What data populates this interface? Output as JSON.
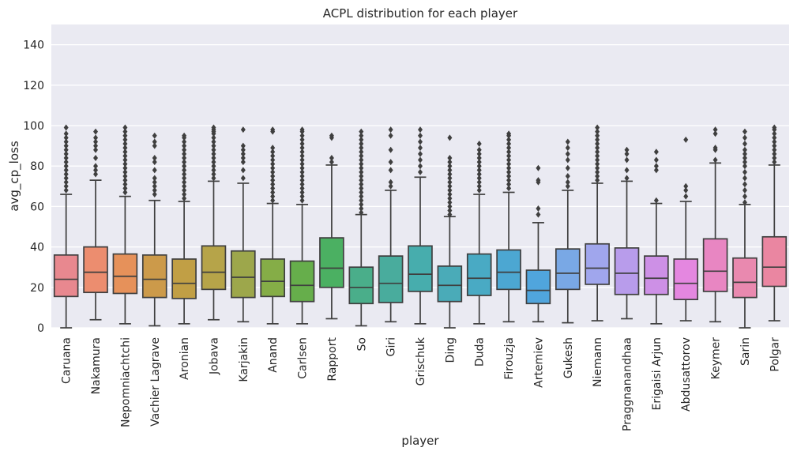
{
  "chart_data": {
    "type": "box",
    "title": "ACPL distribution for each player",
    "xlabel": "player",
    "ylabel": "avg_cp_loss",
    "ylim": [
      0,
      150
    ],
    "yticks": [
      0,
      20,
      40,
      60,
      80,
      100,
      120,
      140
    ],
    "grid": true,
    "categories": [
      "Caruana",
      "Nakamura",
      "Nepomniachtchi",
      "Vachier Lagrave",
      "Aronian",
      "Jobava",
      "Karjakin",
      "Anand",
      "Carlsen",
      "Rapport",
      "So",
      "Giri",
      "Grischuk",
      "Ding",
      "Duda",
      "Firouzja",
      "Artemiev",
      "Gukesh",
      "Niemann",
      "Praggnanandhaa",
      "Erigaisi Arjun",
      "Abdusattorov",
      "Keymer",
      "Sarin",
      "Polgar"
    ],
    "colors": [
      "#e8888f",
      "#ec8d6f",
      "#e6915a",
      "#cc9a4a",
      "#c19f45",
      "#b6a449",
      "#9da74b",
      "#85ad47",
      "#66ae4b",
      "#4bb062",
      "#4aae8a",
      "#49ac9d",
      "#47adad",
      "#4aabb8",
      "#49aac4",
      "#4ca7d2",
      "#50a5dd",
      "#79a8e5",
      "#a0a6ed",
      "#b89ceb",
      "#cd90e6",
      "#e487e0",
      "#e886c2",
      "#e989af",
      "#ea86a1"
    ],
    "boxes": [
      {
        "whislo": 0,
        "q1": 15.5,
        "med": 24,
        "q3": 36,
        "whishi": 66,
        "fliers": [
          68,
          70,
          72,
          74,
          76,
          78,
          80,
          82,
          84,
          86,
          88,
          90,
          92,
          94,
          96,
          99
        ]
      },
      {
        "whislo": 4,
        "q1": 17.5,
        "med": 27.5,
        "q3": 40,
        "whishi": 73,
        "fliers": [
          76,
          78,
          80,
          84,
          88,
          90,
          92,
          94,
          97
        ]
      },
      {
        "whislo": 2,
        "q1": 17,
        "med": 25.5,
        "q3": 36.5,
        "whishi": 65,
        "fliers": [
          67,
          69,
          71,
          73,
          75,
          77,
          79,
          81,
          83,
          85,
          87,
          89,
          91,
          93,
          95,
          97,
          99
        ]
      },
      {
        "whislo": 1,
        "q1": 15,
        "med": 24,
        "q3": 36,
        "whishi": 63,
        "fliers": [
          66,
          68,
          70,
          72,
          74,
          78,
          82,
          84,
          90,
          92,
          95
        ]
      },
      {
        "whislo": 2,
        "q1": 14.5,
        "med": 22,
        "q3": 34,
        "whishi": 62.5,
        "fliers": [
          64,
          66,
          68,
          70,
          72,
          74,
          76,
          78,
          80,
          82,
          84,
          86,
          88,
          90,
          92,
          94,
          95
        ]
      },
      {
        "whislo": 4,
        "q1": 19,
        "med": 27.5,
        "q3": 40.5,
        "whishi": 72.5,
        "fliers": [
          74,
          76,
          78,
          80,
          82,
          84,
          86,
          88,
          90,
          92,
          94,
          96,
          97,
          98,
          99
        ]
      },
      {
        "whislo": 3,
        "q1": 15,
        "med": 25,
        "q3": 38,
        "whishi": 71.5,
        "fliers": [
          74,
          78,
          82,
          84,
          86,
          88,
          90,
          98
        ]
      },
      {
        "whislo": 2,
        "q1": 15.5,
        "med": 23,
        "q3": 34,
        "whishi": 61.5,
        "fliers": [
          63,
          65,
          67,
          69,
          71,
          73,
          75,
          77,
          79,
          81,
          83,
          85,
          87,
          89,
          97,
          98
        ]
      },
      {
        "whislo": 2,
        "q1": 13,
        "med": 21,
        "q3": 33,
        "whishi": 61,
        "fliers": [
          63,
          65,
          67,
          69,
          71,
          73,
          75,
          77,
          79,
          81,
          83,
          85,
          87,
          89,
          91,
          93,
          95,
          97,
          98
        ]
      },
      {
        "whislo": 4.5,
        "q1": 20,
        "med": 29.5,
        "q3": 44.5,
        "whishi": 80.5,
        "fliers": [
          82,
          84,
          94,
          95
        ]
      },
      {
        "whislo": 1,
        "q1": 12,
        "med": 20,
        "q3": 30,
        "whishi": 56,
        "fliers": [
          57,
          59,
          61,
          63,
          65,
          67,
          69,
          71,
          73,
          75,
          77,
          79,
          81,
          83,
          85,
          87,
          89,
          91,
          93,
          95,
          97
        ]
      },
      {
        "whislo": 3,
        "q1": 12.5,
        "med": 22,
        "q3": 35.5,
        "whishi": 68,
        "fliers": [
          70,
          72,
          78,
          82,
          88,
          95,
          98
        ]
      },
      {
        "whislo": 2,
        "q1": 18,
        "med": 26.5,
        "q3": 40.5,
        "whishi": 74.5,
        "fliers": [
          77,
          80,
          83,
          86,
          89,
          92,
          95,
          98
        ]
      },
      {
        "whislo": 0,
        "q1": 13,
        "med": 21,
        "q3": 30.5,
        "whishi": 55,
        "fliers": [
          56,
          58,
          60,
          62,
          64,
          66,
          68,
          70,
          72,
          74,
          76,
          78,
          80,
          82,
          84,
          94
        ]
      },
      {
        "whislo": 2,
        "q1": 16,
        "med": 24.5,
        "q3": 36.5,
        "whishi": 66,
        "fliers": [
          68,
          70,
          72,
          74,
          76,
          78,
          80,
          82,
          84,
          86,
          88,
          91
        ]
      },
      {
        "whislo": 3,
        "q1": 19,
        "med": 27.5,
        "q3": 38.5,
        "whishi": 67,
        "fliers": [
          69,
          71,
          73,
          75,
          77,
          79,
          81,
          83,
          85,
          87,
          89,
          91,
          93,
          95,
          96
        ]
      },
      {
        "whislo": 3,
        "q1": 12,
        "med": 18.5,
        "q3": 28.5,
        "whishi": 52,
        "fliers": [
          56,
          59,
          72,
          73,
          79
        ]
      },
      {
        "whislo": 2.5,
        "q1": 19,
        "med": 27,
        "q3": 39,
        "whishi": 68,
        "fliers": [
          70,
          72,
          75,
          79,
          83,
          86,
          89,
          92
        ]
      },
      {
        "whislo": 3.5,
        "q1": 21.5,
        "med": 29.5,
        "q3": 41.5,
        "whishi": 71.5,
        "fliers": [
          73,
          75,
          77,
          79,
          81,
          83,
          85,
          87,
          89,
          91,
          93,
          95,
          97,
          99
        ]
      },
      {
        "whislo": 4.5,
        "q1": 16.5,
        "med": 27,
        "q3": 39.5,
        "whishi": 72.5,
        "fliers": [
          74,
          78,
          83,
          86,
          88
        ]
      },
      {
        "whislo": 2,
        "q1": 16.5,
        "med": 24.5,
        "q3": 35.5,
        "whishi": 61.5,
        "fliers": [
          63,
          78,
          80,
          83,
          87
        ]
      },
      {
        "whislo": 3.5,
        "q1": 14,
        "med": 22,
        "q3": 34,
        "whishi": 62.5,
        "fliers": [
          65,
          68,
          70,
          93
        ]
      },
      {
        "whislo": 3,
        "q1": 18,
        "med": 28,
        "q3": 44,
        "whishi": 81.5,
        "fliers": [
          83,
          88,
          89,
          96,
          98
        ]
      },
      {
        "whislo": 0,
        "q1": 15,
        "med": 22.5,
        "q3": 34.5,
        "whishi": 61,
        "fliers": [
          62,
          65,
          68,
          71,
          74,
          77,
          80,
          82,
          84,
          86,
          88,
          91,
          94,
          97
        ]
      },
      {
        "whislo": 3.5,
        "q1": 20.5,
        "med": 30,
        "q3": 45,
        "whishi": 80.5,
        "fliers": [
          82,
          84,
          86,
          88,
          90,
          92,
          94,
          96,
          98,
          99
        ]
      }
    ]
  }
}
